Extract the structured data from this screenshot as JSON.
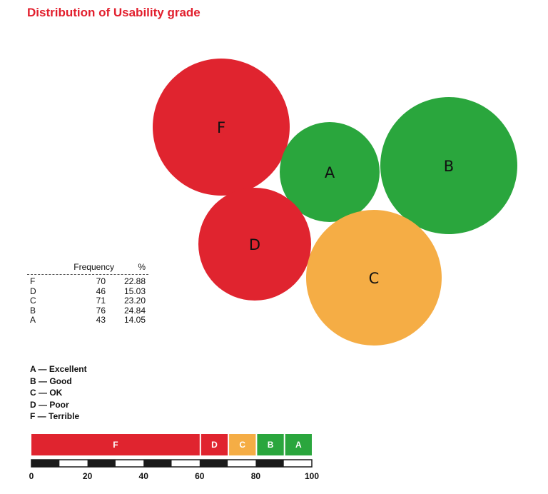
{
  "title": "Distribution of Usability grade",
  "colors": {
    "red": "#e0242f",
    "green": "#2aa63d",
    "orange": "#f5ad45",
    "title": "#e21f2d",
    "ruler": "#1a1a1a"
  },
  "chart_data": {
    "type": "bubble",
    "title": "Distribution of Usability grade",
    "bubbles": [
      {
        "grade": "F",
        "frequency": 70,
        "percent": 22.88,
        "color": "red"
      },
      {
        "grade": "A",
        "frequency": 43,
        "percent": 14.05,
        "color": "green"
      },
      {
        "grade": "B",
        "frequency": 76,
        "percent": 24.84,
        "color": "green"
      },
      {
        "grade": "D",
        "frequency": 46,
        "percent": 15.03,
        "color": "red"
      },
      {
        "grade": "C",
        "frequency": 71,
        "percent": 23.2,
        "color": "orange"
      }
    ],
    "table": {
      "headers": [
        "Frequency",
        "%"
      ],
      "rows": [
        {
          "grade": "F",
          "frequency": "70",
          "percent": "22.88"
        },
        {
          "grade": "D",
          "frequency": "46",
          "percent": "15.03"
        },
        {
          "grade": "C",
          "frequency": "71",
          "percent": "23.20"
        },
        {
          "grade": "B",
          "frequency": "76",
          "percent": "24.84"
        },
        {
          "grade": "A",
          "frequency": "43",
          "percent": "14.05"
        }
      ]
    },
    "legend": [
      "A — Excellent",
      "B — Good",
      "C — OK",
      "D — Poor",
      "F — Terrible"
    ],
    "stacked_bar": {
      "segments": [
        {
          "label": "F",
          "from": 0,
          "to": 60,
          "color": "red"
        },
        {
          "label": "D",
          "from": 60,
          "to": 70,
          "color": "red"
        },
        {
          "label": "C",
          "from": 70,
          "to": 80,
          "color": "orange"
        },
        {
          "label": "B",
          "from": 80,
          "to": 90,
          "color": "green"
        },
        {
          "label": "A",
          "from": 90,
          "to": 100,
          "color": "green"
        }
      ],
      "axis_ticks": [
        "0",
        "20",
        "40",
        "60",
        "80",
        "100"
      ],
      "axis_range": [
        0,
        100
      ]
    }
  }
}
